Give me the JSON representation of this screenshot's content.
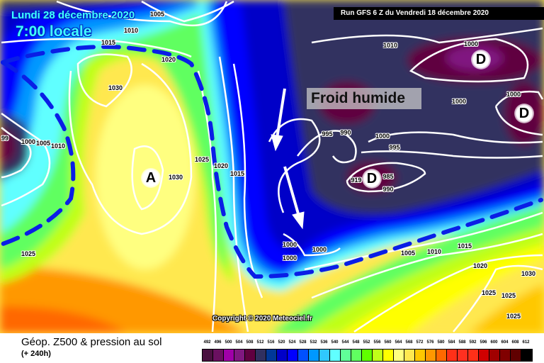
{
  "header": {
    "date": "Lundi 28 décembre 2020",
    "time": "7:00 locale",
    "run": "Run GFS 6 Z du Vendredi 18 décembre 2020"
  },
  "annotation": "Froid humide",
  "copyright": "Copyright © 2020 Meteociel.fr",
  "product": {
    "title": "Géop. Z500 & pression au sol",
    "subtitle": "(+ 240h)"
  },
  "highs_lows": [
    "A",
    "D",
    "D",
    "D"
  ],
  "isobar_labels": [
    "1005",
    "1010",
    "1015",
    "1020",
    "1030",
    "99",
    "1000",
    "1005",
    "1010",
    "1030",
    "1025",
    "1020",
    "1015",
    "1025",
    "1010",
    "1000",
    "1000",
    "1000",
    "995",
    "990",
    "1000",
    "995",
    "919",
    "985",
    "990",
    "1000",
    "1000",
    "1000",
    "1005",
    "1010",
    "1015",
    "1020",
    "1030",
    "1025",
    "1025",
    "1025"
  ],
  "front_color": "#0a1ee6",
  "legend": {
    "values": [
      "492",
      "496",
      "500",
      "504",
      "508",
      "512",
      "516",
      "520",
      "524",
      "528",
      "532",
      "536",
      "540",
      "544",
      "548",
      "552",
      "556",
      "560",
      "564",
      "568",
      "572",
      "576",
      "580",
      "584",
      "588",
      "592",
      "596",
      "600",
      "604",
      "608",
      "612"
    ],
    "colors": [
      "#4a1040",
      "#6a1060",
      "#a000a8",
      "#801880",
      "#600040",
      "#303060",
      "#003898",
      "#0000c8",
      "#0000ff",
      "#0050ff",
      "#0098ff",
      "#30c8ff",
      "#60ffff",
      "#60ff98",
      "#60ff60",
      "#60ff00",
      "#c0ff18",
      "#ffff00",
      "#ffff80",
      "#ffe850",
      "#ffc800",
      "#ff9800",
      "#ff6800",
      "#ff3018",
      "#ff3020",
      "#ff3018",
      "#d00000",
      "#a00000",
      "#800000",
      "#600000",
      "#000000"
    ]
  }
}
